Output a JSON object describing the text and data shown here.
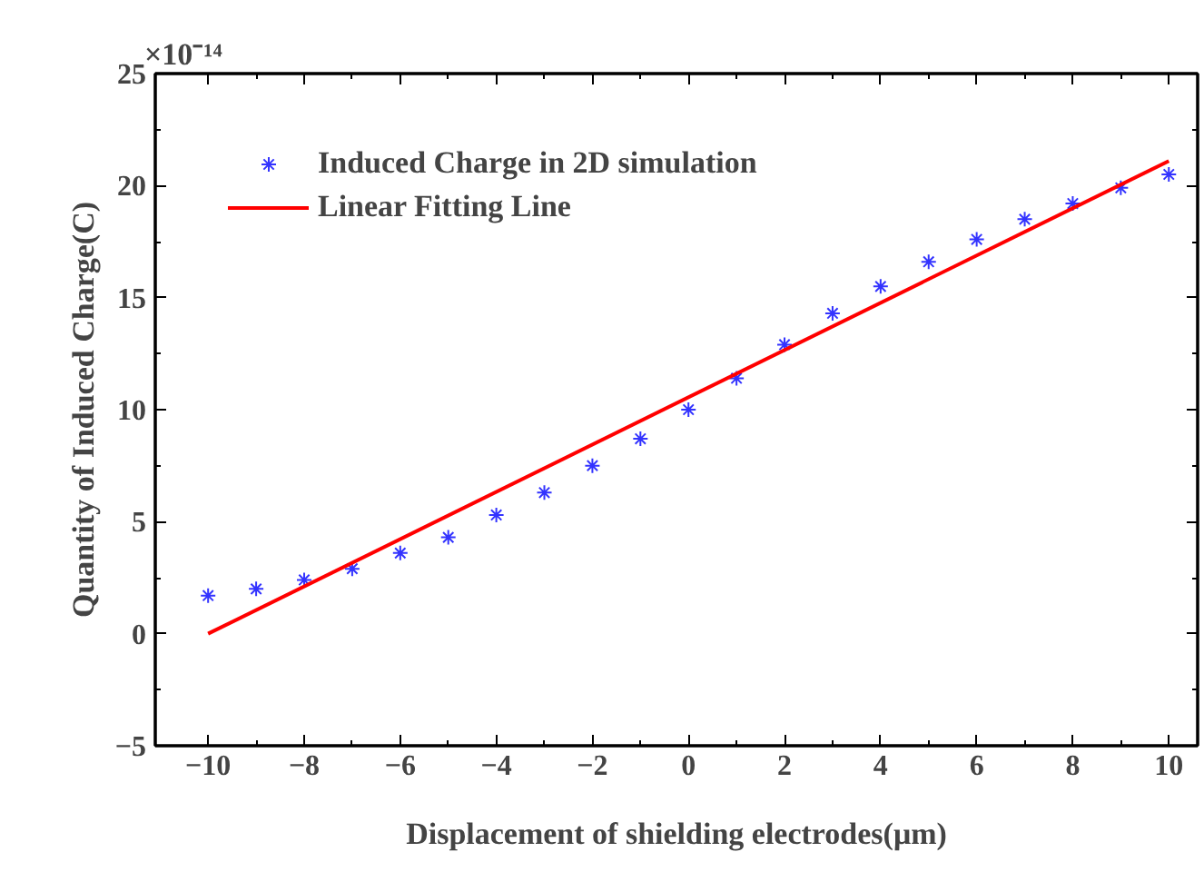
{
  "chart_data": {
    "type": "scatter",
    "xlabel": "Displacement of shielding electrodes(μm)",
    "ylabel": "Quantity of Induced Charge(C)",
    "annotations": [
      "×10⁻¹⁴"
    ],
    "x": [
      -10,
      -9,
      -8,
      -7,
      -6,
      -5,
      -4,
      -3,
      -2,
      -1,
      0,
      1,
      2,
      3,
      4,
      5,
      6,
      7,
      8,
      9,
      10
    ],
    "series": [
      {
        "name": "Induced Charge in 2D simulation",
        "color": "#3333ff",
        "marker": "cross",
        "values": [
          1.7,
          2.0,
          2.4,
          2.9,
          3.6,
          4.3,
          5.3,
          6.3,
          7.5,
          8.7,
          10.0,
          11.4,
          12.9,
          14.3,
          15.5,
          16.6,
          17.6,
          18.5,
          19.2,
          19.9,
          20.5
        ]
      },
      {
        "name": "Linear Fitting Line",
        "type": "line",
        "color": "#ff0000",
        "x": [
          -10,
          10
        ],
        "values": [
          0.0,
          21.1
        ]
      }
    ],
    "xlim": [
      -11.1,
      10.6
    ],
    "ylim": [
      -5,
      25
    ],
    "xticks": [
      -10,
      -8,
      -6,
      -4,
      -2,
      0,
      2,
      4,
      6,
      8,
      10
    ],
    "yticks": [
      -5,
      0,
      5,
      10,
      15,
      20,
      25
    ],
    "legend": "top left",
    "grid": false
  }
}
